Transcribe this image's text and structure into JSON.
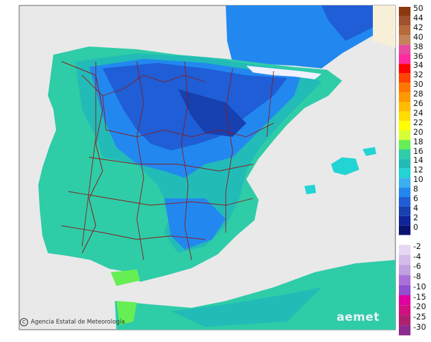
{
  "map": {
    "legend": {
      "positive_labels": [
        "50",
        "44",
        "42",
        "40",
        "38",
        "36",
        "34",
        "32",
        "30",
        "28",
        "26",
        "24",
        "22",
        "20",
        "18",
        "16",
        "14",
        "12",
        "10",
        "8",
        "6",
        "4",
        "2",
        "0"
      ],
      "positive_colors": [
        "#8b3a0f",
        "#a0522d",
        "#b86a3a",
        "#c4835a",
        "#e94aa0",
        "#ff2aa0",
        "#ff0000",
        "#ff4400",
        "#ff7700",
        "#ff9900",
        "#ffbb00",
        "#ffdd00",
        "#ffff00",
        "#d8ff33",
        "#66ee55",
        "#2fcca8",
        "#22bbb8",
        "#22d4d4",
        "#3ab0f0",
        "#2288f0",
        "#1f5ed6",
        "#1740b0",
        "#10249a",
        "#0a1470"
      ],
      "negative_labels": [
        "-2",
        "-4",
        "-6",
        "-8",
        "-10",
        "-15",
        "-20",
        "-25",
        "-30"
      ],
      "negative_colors": [
        "#e6d8f2",
        "#d4bce8",
        "#c0a0de",
        "#a870d8",
        "#9050d0",
        "#e000a0",
        "#d01080",
        "#b02070",
        "#8c2c90"
      ]
    },
    "credit": "Agencia Estatal de Meteorología",
    "logo": "aemet",
    "colors": {
      "sea": "#e9e9e9",
      "land_mild": "#2fcca8",
      "land_cool": "#22bbb8",
      "land_cold": "#2288f0",
      "land_very_cold": "#1f5ed6",
      "border": "#8b1a1a"
    }
  }
}
